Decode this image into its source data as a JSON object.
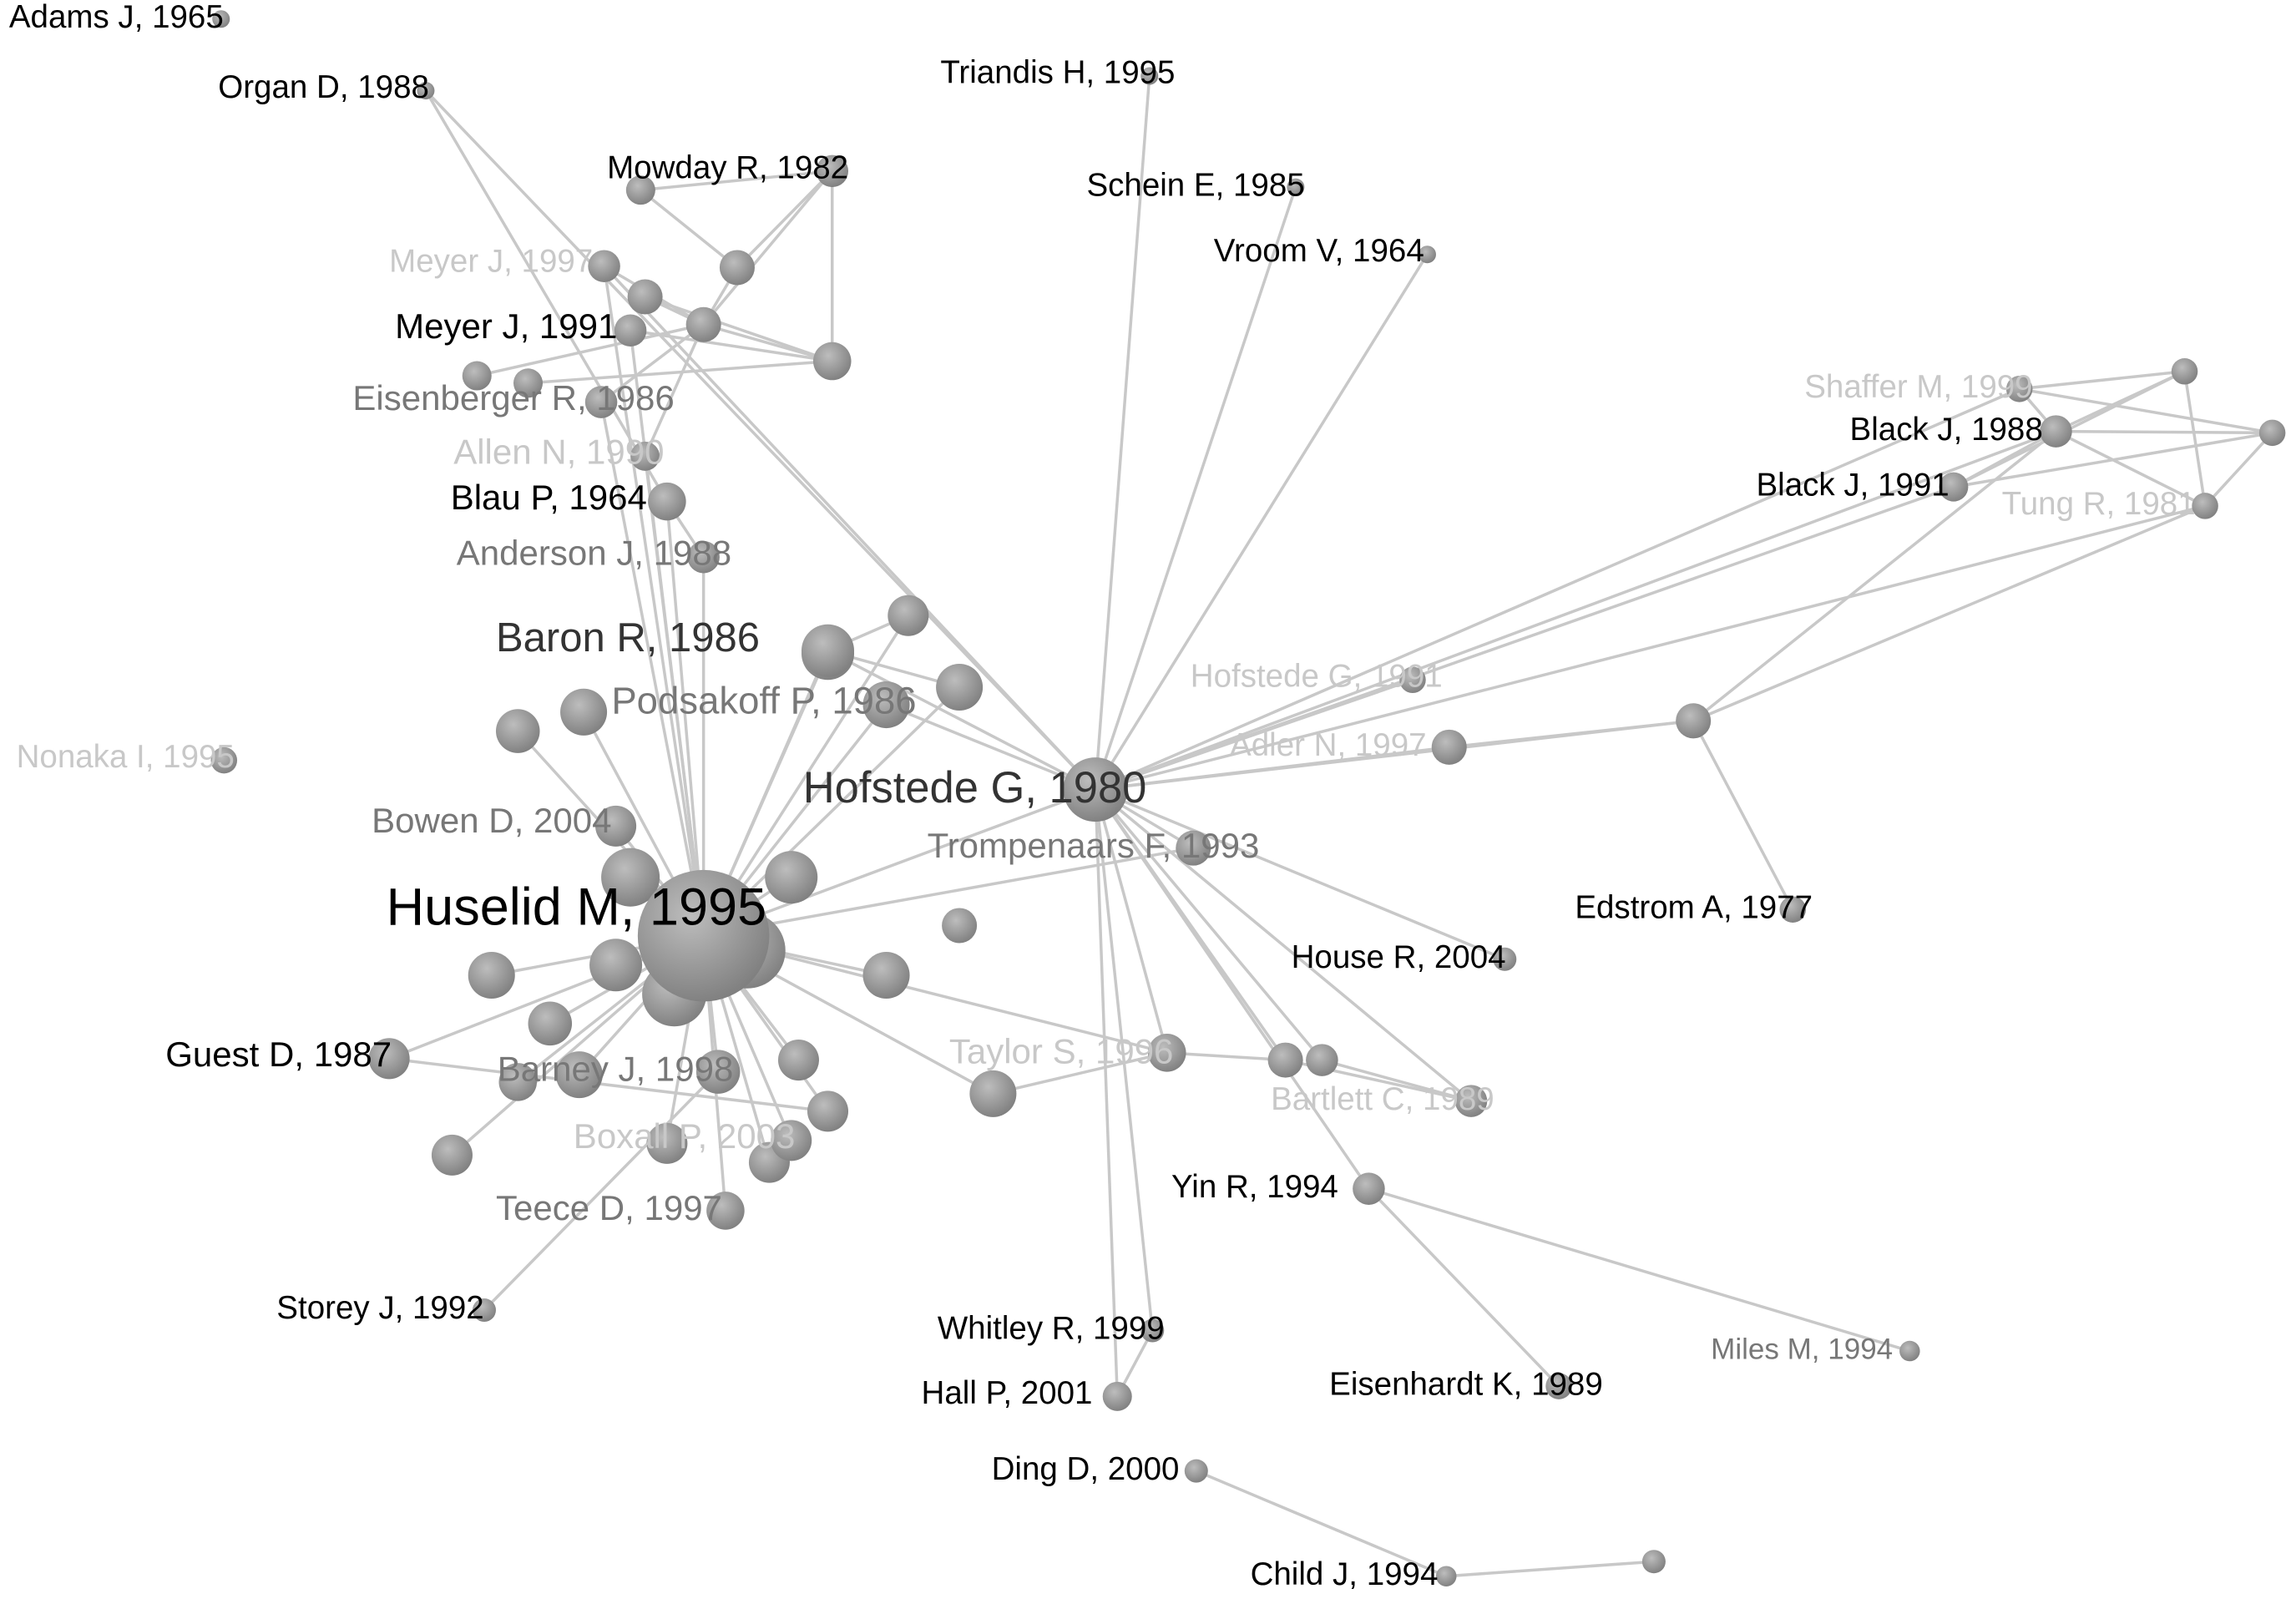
{
  "nodes": [
    {
      "label": "Adams J, 1965"
    },
    {
      "label": "Organ D, 1988"
    },
    {
      "label": "Triandis H, 1995"
    },
    {
      "label": "Mowday R, 1982"
    },
    {
      "label": "Schein E, 1985"
    },
    {
      "label": "Vroom V, 1964"
    },
    {
      "label": "Meyer J, 1997"
    },
    {
      "label": "Meyer J, 1991"
    },
    {
      "label": "Eisenberger R, 1986"
    },
    {
      "label": "Allen N, 1990"
    },
    {
      "label": "Blau P, 1964"
    },
    {
      "label": "Anderson J, 1988"
    },
    {
      "label": "Baron R, 1986"
    },
    {
      "label": "Podsakoff P, 1986"
    },
    {
      "label": "Nonaka I, 1995"
    },
    {
      "label": "Hofstede G, 1980"
    },
    {
      "label": "Bowen D, 2004"
    },
    {
      "label": "Trompenaars F, 1993"
    },
    {
      "label": "Huselid M, 1995"
    },
    {
      "label": "Hofstede G, 1991"
    },
    {
      "label": "Adler N, 1997"
    },
    {
      "label": "Shaffer M, 1999"
    },
    {
      "label": "Black J, 1988"
    },
    {
      "label": "Black J, 1991"
    },
    {
      "label": "Tung R, 1981"
    },
    {
      "label": "Edstrom A, 1977"
    },
    {
      "label": "House R, 2004"
    },
    {
      "label": "Guest D, 1987"
    },
    {
      "label": "Barney J, 1998"
    },
    {
      "label": "Taylor S, 1996"
    },
    {
      "label": "Bartlett C, 1989"
    },
    {
      "label": "Boxall P, 2003"
    },
    {
      "label": "Teece D, 1997"
    },
    {
      "label": "Yin R, 1994"
    },
    {
      "label": "Storey J, 1992"
    },
    {
      "label": "Whitley R, 1999"
    },
    {
      "label": "Miles M, 1994"
    },
    {
      "label": "Eisenhardt K, 1989"
    },
    {
      "label": "Hall P, 2001"
    },
    {
      "label": "Ding D, 2000"
    },
    {
      "label": "Child J, 1994"
    }
  ]
}
